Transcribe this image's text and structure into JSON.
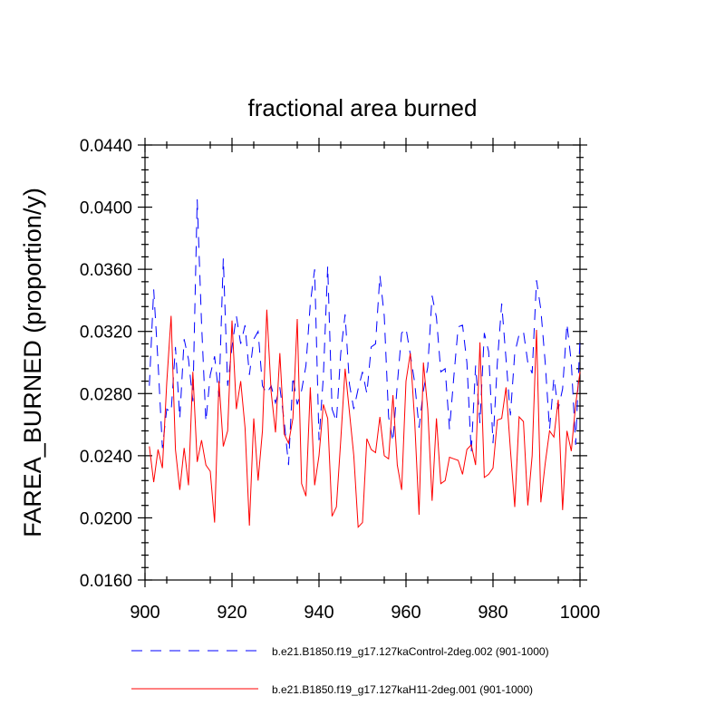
{
  "chart_data": {
    "type": "line",
    "title": "fractional area burned",
    "xlabel": "",
    "ylabel": "FAREA_BURNED  (proportion/y)",
    "xlim": [
      900,
      1000
    ],
    "ylim": [
      0.016,
      0.044
    ],
    "x_ticks": [
      900,
      920,
      940,
      960,
      980,
      1000
    ],
    "x_tick_labels": [
      "900",
      "920",
      "940",
      "960",
      "980",
      "1000"
    ],
    "y_ticks": [
      0.016,
      0.02,
      0.024,
      0.028,
      0.032,
      0.036,
      0.04,
      0.044
    ],
    "y_tick_labels": [
      "0.0160",
      "0.0200",
      "0.0240",
      "0.0280",
      "0.0320",
      "0.0360",
      "0.0400",
      "0.0440"
    ],
    "grid": false,
    "legend_position": "bottom",
    "series": [
      {
        "name": "b.e21.B1850.f19_g17.127kaControl-2deg.002 (901-1000)",
        "color": "#0000ff",
        "dash": "dashed",
        "x_start": 901,
        "values": [
          0.0285,
          0.0347,
          0.03,
          0.0245,
          0.027,
          0.0268,
          0.031,
          0.0264,
          0.0315,
          0.0302,
          0.0275,
          0.0405,
          0.0325,
          0.0262,
          0.0292,
          0.0304,
          0.0278,
          0.0367,
          0.0285,
          0.031,
          0.033,
          0.0312,
          0.0324,
          0.0292,
          0.0315,
          0.032,
          0.0285,
          0.028,
          0.0285,
          0.0274,
          0.0284,
          0.0262,
          0.0234,
          0.0291,
          0.0273,
          0.0282,
          0.0298,
          0.0338,
          0.036,
          0.025,
          0.0291,
          0.0362,
          0.027,
          0.0262,
          0.0306,
          0.0331,
          0.0286,
          0.027,
          0.0283,
          0.0294,
          0.028,
          0.031,
          0.0312,
          0.0356,
          0.033,
          0.0265,
          0.0249,
          0.0286,
          0.0319,
          0.0322,
          0.0305,
          0.0287,
          0.0258,
          0.0282,
          0.0297,
          0.0343,
          0.0329,
          0.0294,
          0.0296,
          0.0257,
          0.0291,
          0.0323,
          0.0324,
          0.03,
          0.0242,
          0.0298,
          0.0261,
          0.0319,
          0.0307,
          0.0248,
          0.03,
          0.0338,
          0.0302,
          0.0266,
          0.0306,
          0.0318,
          0.032,
          0.03,
          0.0293,
          0.0353,
          0.0334,
          0.03,
          0.0257,
          0.029,
          0.027,
          0.0283,
          0.0325,
          0.03,
          0.0247,
          0.0316
        ]
      },
      {
        "name": "b.e21.B1850.f19_g17.127kaH11-2deg.001 (901-1000)",
        "color": "#ff0000",
        "dash": "solid",
        "x_start": 901,
        "values": [
          0.0246,
          0.0223,
          0.0244,
          0.0232,
          0.0287,
          0.033,
          0.0244,
          0.0218,
          0.0245,
          0.0221,
          0.0294,
          0.0236,
          0.025,
          0.0234,
          0.023,
          0.0197,
          0.0288,
          0.0246,
          0.0256,
          0.0327,
          0.027,
          0.0288,
          0.0258,
          0.0195,
          0.0264,
          0.0224,
          0.0256,
          0.0334,
          0.0281,
          0.0255,
          0.0306,
          0.0254,
          0.0248,
          0.0264,
          0.0328,
          0.0222,
          0.0214,
          0.0284,
          0.0221,
          0.024,
          0.0273,
          0.0264,
          0.0201,
          0.0207,
          0.025,
          0.0296,
          0.0268,
          0.024,
          0.0194,
          0.0197,
          0.0251,
          0.0244,
          0.0242,
          0.0265,
          0.024,
          0.0238,
          0.0279,
          0.0234,
          0.0218,
          0.0288,
          0.0306,
          0.0262,
          0.0202,
          0.03,
          0.027,
          0.0211,
          0.0264,
          0.0222,
          0.0224,
          0.0239,
          0.0238,
          0.0237,
          0.0228,
          0.0244,
          0.0247,
          0.0234,
          0.0313,
          0.0226,
          0.0228,
          0.0232,
          0.0263,
          0.0264,
          0.0284,
          0.0244,
          0.0207,
          0.0265,
          0.0262,
          0.0208,
          0.024,
          0.0321,
          0.021,
          0.0235,
          0.0256,
          0.0252,
          0.0276,
          0.0205,
          0.0256,
          0.0243,
          0.0273,
          0.0294
        ]
      }
    ]
  }
}
